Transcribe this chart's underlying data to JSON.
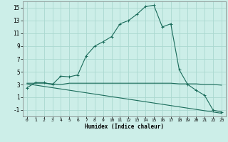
{
  "xlabel": "Humidex (Indice chaleur)",
  "bg_color": "#cceee8",
  "grid_color": "#aad8d0",
  "line_color": "#1a6b5a",
  "xlim": [
    -0.5,
    23.5
  ],
  "ylim": [
    -2.0,
    16.0
  ],
  "xticks": [
    0,
    1,
    2,
    3,
    4,
    5,
    6,
    7,
    8,
    9,
    10,
    11,
    12,
    13,
    14,
    15,
    16,
    17,
    18,
    19,
    20,
    21,
    22,
    23
  ],
  "yticks": [
    -1,
    1,
    3,
    5,
    7,
    9,
    11,
    13,
    15
  ],
  "curve1_x": [
    0,
    1,
    2,
    3,
    4,
    5,
    6,
    7,
    8,
    9,
    10,
    11,
    12,
    13,
    14,
    15,
    16,
    17,
    18,
    19,
    20,
    21,
    22,
    23
  ],
  "curve1_y": [
    2.5,
    3.3,
    3.3,
    3.0,
    4.3,
    4.2,
    4.5,
    7.5,
    9.0,
    9.7,
    10.5,
    12.5,
    13.0,
    14.0,
    15.2,
    15.4,
    12.0,
    12.5,
    5.3,
    3.0,
    2.1,
    1.3,
    -1.0,
    -1.3
  ],
  "curve2_x": [
    0,
    1,
    2,
    3,
    4,
    5,
    6,
    7,
    8,
    9,
    10,
    11,
    12,
    13,
    14,
    15,
    16,
    17,
    18,
    19,
    20,
    21,
    22,
    23
  ],
  "curve2_y": [
    3.2,
    3.2,
    3.2,
    3.1,
    3.0,
    3.2,
    3.2,
    3.2,
    3.2,
    3.2,
    3.2,
    3.2,
    3.2,
    3.2,
    3.2,
    3.2,
    3.2,
    3.2,
    3.1,
    3.1,
    3.1,
    3.0,
    3.0,
    2.9
  ],
  "curve3_x": [
    0,
    1,
    2,
    3,
    4,
    5,
    6,
    7,
    8,
    9,
    10,
    11,
    12,
    13,
    14,
    15,
    16,
    17,
    18,
    19,
    20,
    21,
    22,
    23
  ],
  "curve3_y": [
    3.1,
    2.9,
    2.7,
    2.5,
    2.3,
    2.1,
    1.9,
    1.7,
    1.5,
    1.3,
    1.1,
    0.9,
    0.7,
    0.5,
    0.3,
    0.1,
    -0.1,
    -0.3,
    -0.5,
    -0.7,
    -0.9,
    -1.1,
    -1.3,
    -1.5
  ]
}
